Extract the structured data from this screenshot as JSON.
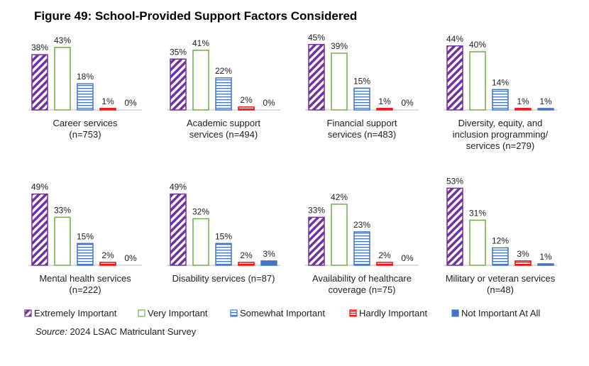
{
  "title": "Figure 49: School-Provided Support Factors Considered",
  "legend": [
    {
      "name": "Extremely Important",
      "color": "#7030a0",
      "pattern": "diagonal"
    },
    {
      "name": "Very Important",
      "color": "#70ad47",
      "pattern": "outline"
    },
    {
      "name": "Somewhat Important",
      "color": "#4472c4",
      "pattern": "horizontal"
    },
    {
      "name": "Hardly Important",
      "color": "#ff0000",
      "pattern": "vertical"
    },
    {
      "name": "Not Important At All",
      "color": "#4472c4",
      "pattern": "solid"
    }
  ],
  "source_label": "Source:",
  "source": "2024 LSAC Matriculant Survey",
  "chart_data": [
    {
      "type": "bar",
      "title": [
        "Career services",
        "(n=753)"
      ],
      "values": [
        38,
        43,
        18,
        1,
        0
      ],
      "value_labels": [
        "38%",
        "43%",
        "18%",
        "1%",
        "0%"
      ]
    },
    {
      "type": "bar",
      "title": [
        "Academic support",
        "services (n=494)"
      ],
      "values": [
        35,
        41,
        22,
        2,
        0
      ],
      "value_labels": [
        "35%",
        "41%",
        "22%",
        "2%",
        "0%"
      ]
    },
    {
      "type": "bar",
      "title": [
        "Financial support",
        "services (n=483)"
      ],
      "values": [
        45,
        39,
        15,
        1,
        0
      ],
      "value_labels": [
        "45%",
        "39%",
        "15%",
        "1%",
        "0%"
      ]
    },
    {
      "type": "bar",
      "title": [
        "Diversity, equity, and",
        "inclusion programming/",
        "services (n=279)"
      ],
      "values": [
        44,
        40,
        14,
        1,
        1
      ],
      "value_labels": [
        "44%",
        "40%",
        "14%",
        "1%",
        "1%"
      ]
    },
    {
      "type": "bar",
      "title": [
        "Mental health services",
        "(n=222)"
      ],
      "values": [
        49,
        33,
        15,
        2,
        0
      ],
      "value_labels": [
        "49%",
        "33%",
        "15%",
        "2%",
        "0%"
      ]
    },
    {
      "type": "bar",
      "title": [
        "Disability services (n=87)"
      ],
      "values": [
        49,
        32,
        15,
        2,
        3
      ],
      "value_labels": [
        "49%",
        "32%",
        "15%",
        "2%",
        "3%"
      ]
    },
    {
      "type": "bar",
      "title": [
        "Availability of healthcare",
        "coverage (n=75)"
      ],
      "values": [
        33,
        42,
        23,
        2,
        0
      ],
      "value_labels": [
        "33%",
        "42%",
        "23%",
        "2%",
        "0%"
      ]
    },
    {
      "type": "bar",
      "title": [
        "Military or veteran services",
        "(n=48)"
      ],
      "values": [
        53,
        31,
        12,
        3,
        1
      ],
      "value_labels": [
        "53%",
        "31%",
        "12%",
        "3%",
        "1%"
      ]
    }
  ]
}
